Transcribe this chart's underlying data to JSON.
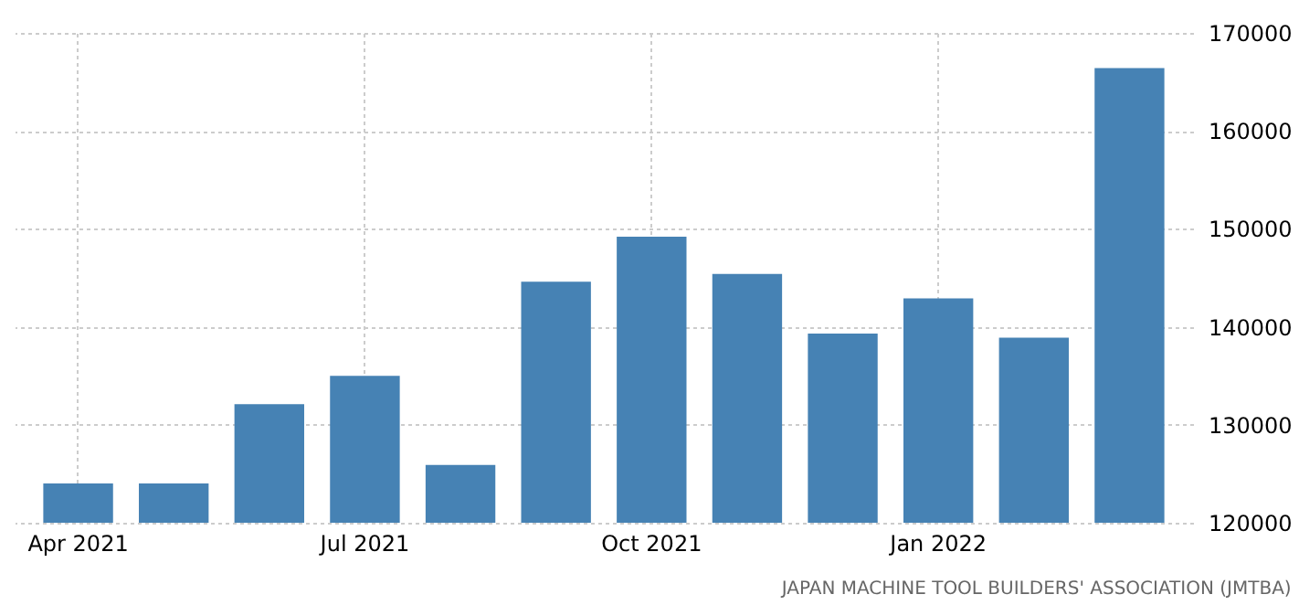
{
  "chart_data": {
    "type": "bar",
    "categories": [
      "Apr 2021",
      null,
      null,
      "Jul 2021",
      null,
      null,
      "Oct 2021",
      null,
      null,
      "Jan 2022",
      null,
      null
    ],
    "values": [
      124000,
      124000,
      132100,
      135000,
      125900,
      144600,
      149200,
      145400,
      139300,
      142900,
      138900,
      166400
    ],
    "color": "#4682b4",
    "ylim": [
      120000,
      170000
    ],
    "yticks": [
      120000,
      130000,
      140000,
      150000,
      160000,
      170000
    ],
    "grid": true,
    "annotations": [
      "JAPAN MACHINE TOOL BUILDERS' ASSOCIATION (JMTBA)"
    ]
  }
}
